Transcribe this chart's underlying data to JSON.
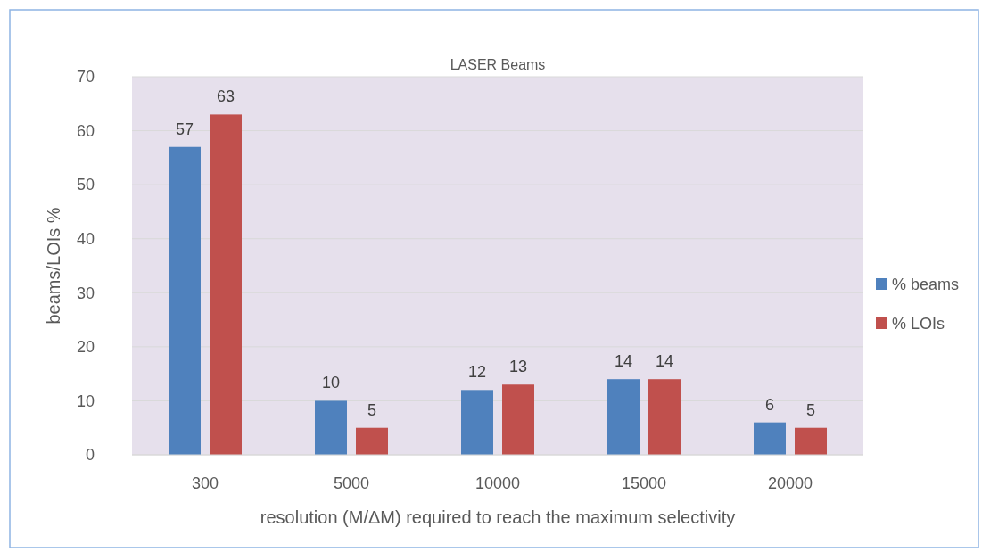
{
  "chart_data": {
    "type": "bar",
    "title": "LASER Beams",
    "xlabel": "resolution (M/ΔM) required to reach the maximum selectivity",
    "ylabel": "beams/LOIs %",
    "categories": [
      "300",
      "5000",
      "10000",
      "15000",
      "20000"
    ],
    "series": [
      {
        "name": "% beams",
        "color": "#4f81bd",
        "values": [
          57,
          10,
          12,
          14,
          6
        ]
      },
      {
        "name": "% LOIs",
        "color": "#c0504d",
        "values": [
          63,
          5,
          13,
          14,
          5
        ]
      }
    ],
    "ylim": [
      0,
      70
    ],
    "yticks": [
      0,
      10,
      20,
      30,
      40,
      50,
      60,
      70
    ],
    "grid": "y",
    "legend": "right",
    "data_labels": true
  }
}
